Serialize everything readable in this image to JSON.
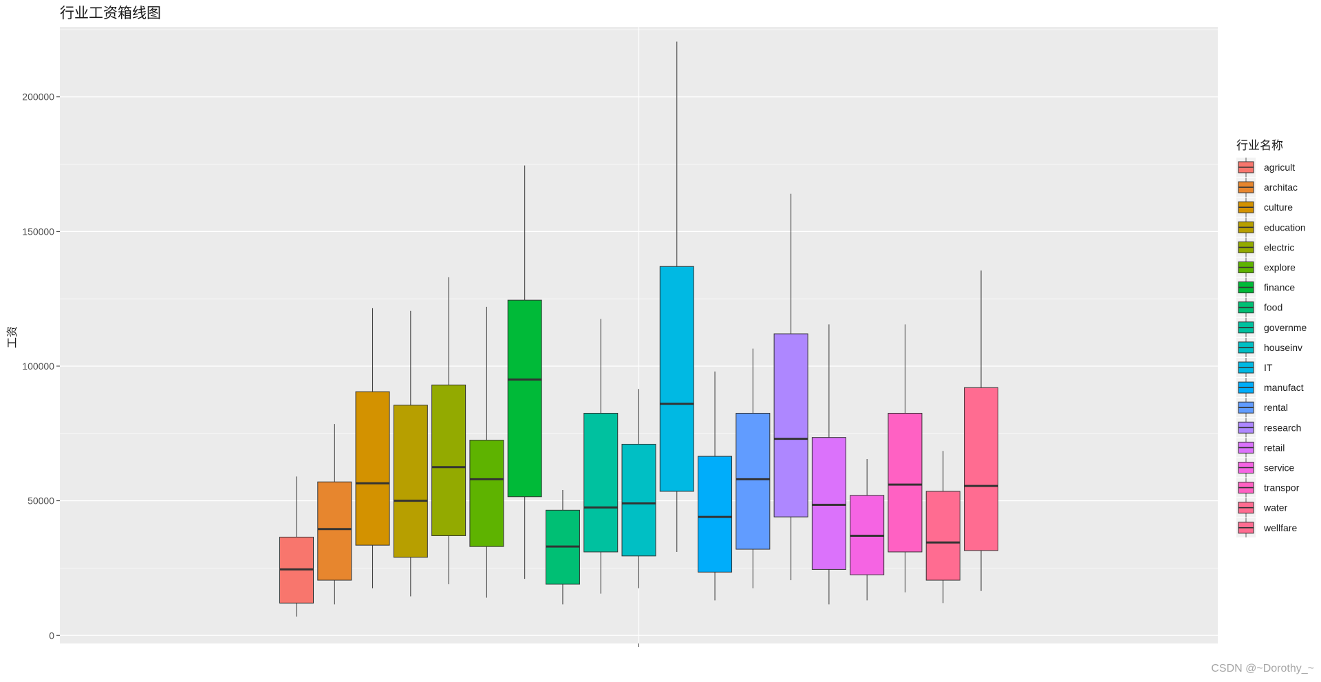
{
  "chart_data": {
    "type": "box",
    "title": "行业工资箱线图",
    "xlabel": "",
    "ylabel": "工资",
    "ylim": [
      -3000,
      226000
    ],
    "yticks": [
      0,
      50000,
      100000,
      150000,
      200000
    ],
    "ytick_labels": [
      "0",
      "50000",
      "100000",
      "150000",
      "200000"
    ],
    "grid": true,
    "legend": {
      "title": "行业名称",
      "position": "right"
    },
    "series": [
      {
        "name": "agricult",
        "color": "#F8766D",
        "whisker_low": 7000,
        "q1": 12000,
        "median": 24500,
        "q3": 36500,
        "whisker_high": 59000
      },
      {
        "name": "architac",
        "color": "#E7862E",
        "whisker_low": 11500,
        "q1": 20500,
        "median": 39500,
        "q3": 57000,
        "whisker_high": 78500
      },
      {
        "name": "culture",
        "color": "#D39200",
        "whisker_low": 17500,
        "q1": 33500,
        "median": 56500,
        "q3": 90500,
        "whisker_high": 121500
      },
      {
        "name": "education",
        "color": "#B79F00",
        "whisker_low": 14500,
        "q1": 29000,
        "median": 50000,
        "q3": 85500,
        "whisker_high": 120500
      },
      {
        "name": "electric",
        "color": "#93AA00",
        "whisker_low": 19000,
        "q1": 37000,
        "median": 62500,
        "q3": 93000,
        "whisker_high": 133000
      },
      {
        "name": "explore",
        "color": "#5EB300",
        "whisker_low": 14000,
        "q1": 33000,
        "median": 58000,
        "q3": 72500,
        "whisker_high": 122000
      },
      {
        "name": "finance",
        "color": "#00BA38",
        "whisker_low": 21000,
        "q1": 51500,
        "median": 95000,
        "q3": 124500,
        "whisker_high": 174500
      },
      {
        "name": "food",
        "color": "#00BF74",
        "whisker_low": 11500,
        "q1": 19000,
        "median": 33000,
        "q3": 46500,
        "whisker_high": 54000
      },
      {
        "name": "governme",
        "color": "#00C19F",
        "whisker_low": 15500,
        "q1": 31000,
        "median": 47500,
        "q3": 82500,
        "whisker_high": 117500
      },
      {
        "name": "houseinv",
        "color": "#00BFC4",
        "whisker_low": 17500,
        "q1": 29500,
        "median": 49000,
        "q3": 71000,
        "whisker_high": 91500
      },
      {
        "name": "IT",
        "color": "#00B9E3",
        "whisker_low": 31000,
        "q1": 53500,
        "median": 86000,
        "q3": 137000,
        "whisker_high": 220500
      },
      {
        "name": "manufact",
        "color": "#00ADFA",
        "whisker_low": 13000,
        "q1": 23500,
        "median": 44000,
        "q3": 66500,
        "whisker_high": 98000
      },
      {
        "name": "rental",
        "color": "#619CFF",
        "whisker_low": 17500,
        "q1": 32000,
        "median": 58000,
        "q3": 82500,
        "whisker_high": 106500
      },
      {
        "name": "research",
        "color": "#AE87FF",
        "whisker_low": 20500,
        "q1": 44000,
        "median": 73000,
        "q3": 112000,
        "whisker_high": 164000
      },
      {
        "name": "retail",
        "color": "#DB72FB",
        "whisker_low": 11500,
        "q1": 24500,
        "median": 48500,
        "q3": 73500,
        "whisker_high": 115500
      },
      {
        "name": "service",
        "color": "#F564E3",
        "whisker_low": 13000,
        "q1": 22500,
        "median": 37000,
        "q3": 52000,
        "whisker_high": 65500
      },
      {
        "name": "transpor",
        "color": "#FF61C3",
        "whisker_low": 16000,
        "q1": 31000,
        "median": 56000,
        "q3": 82500,
        "whisker_high": 115500
      },
      {
        "name": "water",
        "color": "#FF6C91",
        "whisker_low": 12000,
        "q1": 20500,
        "median": 34500,
        "q3": 53500,
        "whisker_high": 68500
      },
      {
        "name": "wellfare",
        "color": "#FF6C91",
        "whisker_low": 16500,
        "q1": 31500,
        "median": 55500,
        "q3": 92000,
        "whisker_high": 135500
      }
    ]
  },
  "watermark": "CSDN @~Dorothy_~"
}
